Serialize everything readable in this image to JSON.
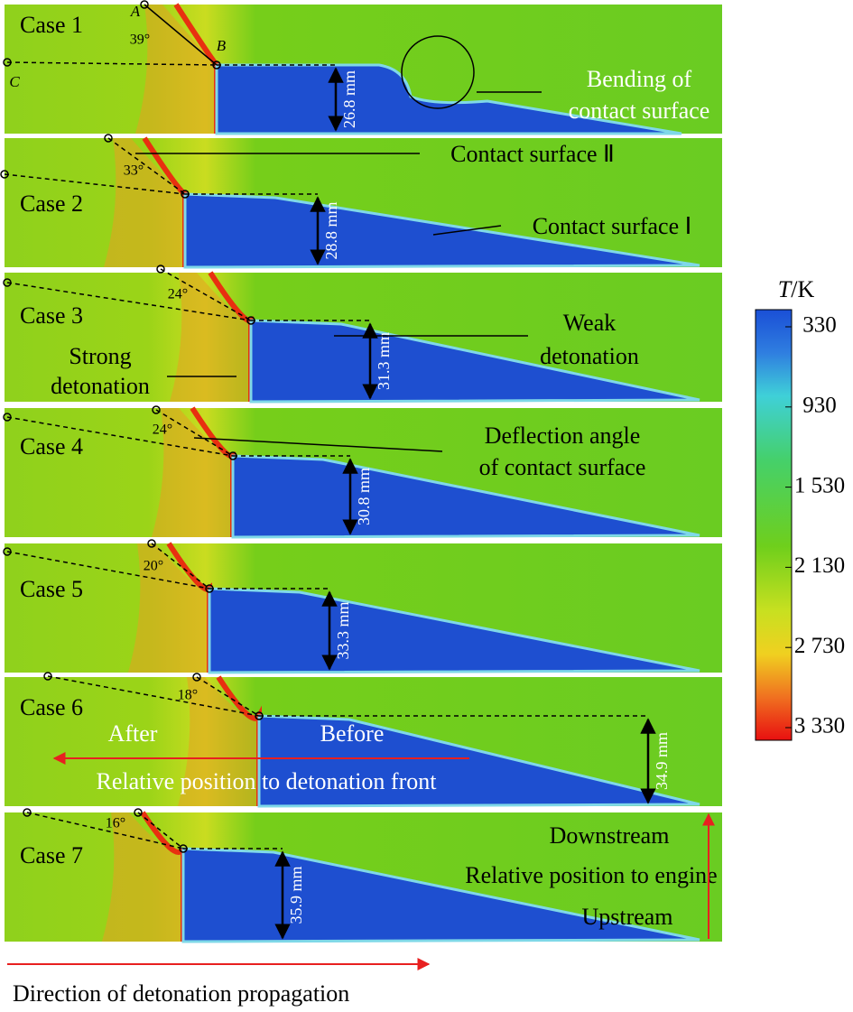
{
  "cases": [
    {
      "label": "Case 1",
      "angle": "39°",
      "distance": "26.8 mm"
    },
    {
      "label": "Case 2",
      "angle": "33°",
      "distance": "28.8 mm"
    },
    {
      "label": "Case 3",
      "angle": "24°",
      "distance": "31.3 mm"
    },
    {
      "label": "Case 4",
      "angle": "24°",
      "distance": "30.8 mm"
    },
    {
      "label": "Case 5",
      "angle": "20°",
      "distance": "33.3 mm"
    },
    {
      "label": "Case 6",
      "angle": "18°",
      "distance": "34.9 mm"
    },
    {
      "label": "Case 7",
      "angle": "16°",
      "distance": "35.9 mm"
    }
  ],
  "points": [
    "A",
    "B",
    "C"
  ],
  "annotations": {
    "bending": [
      "Bending of",
      "contact surface"
    ],
    "contact_2": "Contact surface Ⅱ",
    "contact_1": "Contact surface Ⅰ",
    "weak": [
      "Weak",
      "detonation"
    ],
    "strong": [
      "Strong",
      "detonation"
    ],
    "deflection": [
      "Deflection angle",
      "of contact surface"
    ],
    "after": "After",
    "before": "Before",
    "front_position": "Relative position to detonation front",
    "downstream": "Downstream",
    "engine_position": "Relative position to engine",
    "upstream": "Upstream",
    "propagation": "Direction of detonation propagation"
  },
  "colorbar": {
    "label_var": "T",
    "label_unit": "/K",
    "ticks": [
      "330",
      "930",
      "1 530",
      "2 130",
      "2 730",
      "3 330"
    ]
  }
}
